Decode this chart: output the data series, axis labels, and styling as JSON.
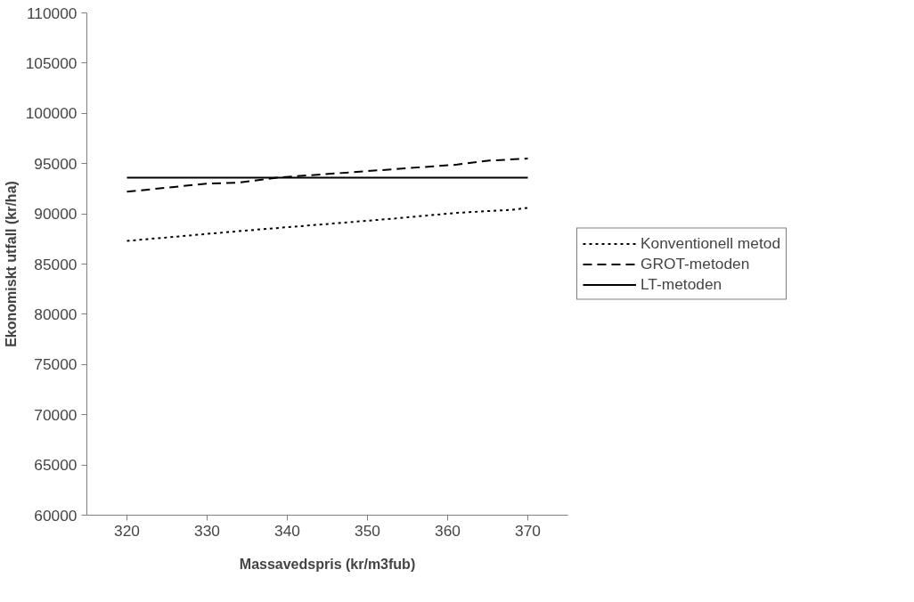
{
  "chart_data": {
    "type": "line",
    "xlabel": "Massavedspris (kr/m3fub)",
    "ylabel": "Ekonomiskt utfall (kr/ha)",
    "xlim": [
      315,
      375
    ],
    "xticks": [
      320,
      330,
      340,
      350,
      360,
      370
    ],
    "ylim": [
      60000,
      110000
    ],
    "yticks": [
      60000,
      65000,
      70000,
      75000,
      80000,
      85000,
      90000,
      95000,
      100000,
      105000,
      110000
    ],
    "grid": false,
    "legend": "right",
    "series": [
      {
        "name": "Konventionell metod",
        "color": "#000000",
        "line_style": "dotted",
        "x": [
          320,
          334.3,
          352.9,
          361.2,
          368,
          370
        ],
        "values": [
          87300,
          88300,
          89500,
          90100,
          90400,
          90600
        ]
      },
      {
        "name": "GROT-metoden",
        "color": "#000000",
        "line_style": "dashed",
        "x": [
          320,
          329.9,
          333.9,
          338.7,
          361.2,
          365.2,
          370
        ],
        "values": [
          92200,
          93000,
          93100,
          93600,
          94900,
          95300,
          95500
        ]
      },
      {
        "name": "LT-metoden",
        "color": "#000000",
        "line_style": "solid",
        "x": [
          320,
          370
        ],
        "values": [
          93600,
          93600
        ]
      }
    ]
  }
}
